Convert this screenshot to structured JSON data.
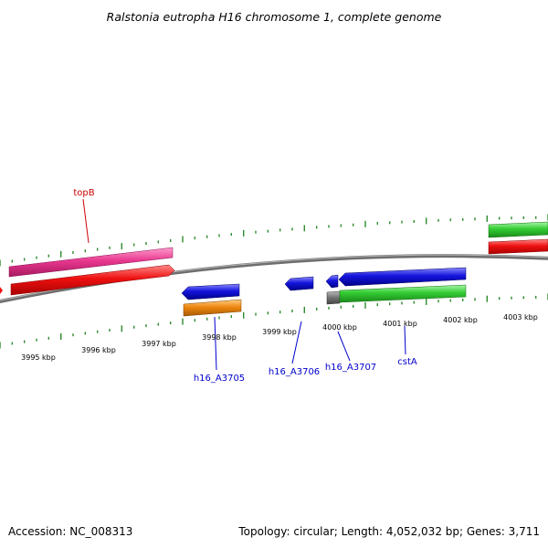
{
  "title": "Ralstonia eutropha H16 chromosome 1, complete genome",
  "footer": {
    "accession": "Accession: NC_008313",
    "summary": "Topology: circular; Length: 4,052,032 bp; Genes: 3,711"
  },
  "colors": {
    "backbone": "#808080",
    "tick": "#2e8b2e",
    "axis_label": "#000000",
    "gene_label_forward": "#cc0000",
    "gene_label_reverse": "#0000cc",
    "pink": "#e8388f",
    "red": "#ee1111",
    "blue": "#1515dd",
    "orange": "#ee8811",
    "green": "#33cc33",
    "gray": "#777777"
  },
  "outer_ticks": [
    {
      "label": "3995 kbp"
    },
    {
      "label": "3996 kbp"
    },
    {
      "label": "3997 kbp"
    },
    {
      "label": "3998 kbp"
    },
    {
      "label": "3999 kbp"
    },
    {
      "label": "4000 kbp"
    },
    {
      "label": "4001 kbp"
    },
    {
      "label": "4002 kbp"
    },
    {
      "label": "4003 kbp"
    }
  ],
  "gene_labels": [
    {
      "text": "topB"
    },
    {
      "text": "h16_A3705"
    },
    {
      "text": "h16_A3706"
    },
    {
      "text": "h16_A3707"
    },
    {
      "text": "cstA"
    }
  ]
}
